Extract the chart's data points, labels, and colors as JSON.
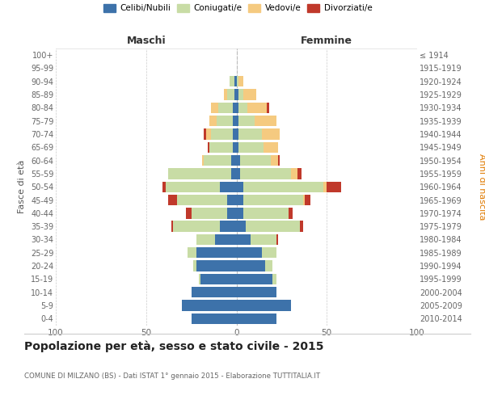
{
  "age_groups": [
    "0-4",
    "5-9",
    "10-14",
    "15-19",
    "20-24",
    "25-29",
    "30-34",
    "35-39",
    "40-44",
    "45-49",
    "50-54",
    "55-59",
    "60-64",
    "65-69",
    "70-74",
    "75-79",
    "80-84",
    "85-89",
    "90-94",
    "95-99",
    "100+"
  ],
  "birth_years": [
    "2010-2014",
    "2005-2009",
    "2000-2004",
    "1995-1999",
    "1990-1994",
    "1985-1989",
    "1980-1984",
    "1975-1979",
    "1970-1974",
    "1965-1969",
    "1960-1964",
    "1955-1959",
    "1950-1954",
    "1945-1949",
    "1940-1944",
    "1935-1939",
    "1930-1934",
    "1925-1929",
    "1920-1924",
    "1915-1919",
    "≤ 1914"
  ],
  "males": {
    "celibi": [
      25,
      30,
      25,
      20,
      22,
      22,
      12,
      9,
      5,
      5,
      9,
      3,
      3,
      2,
      2,
      2,
      2,
      1,
      1,
      0,
      0
    ],
    "coniugati": [
      0,
      0,
      0,
      1,
      2,
      5,
      10,
      26,
      20,
      28,
      30,
      35,
      15,
      13,
      12,
      9,
      8,
      4,
      3,
      0,
      0
    ],
    "vedovi": [
      0,
      0,
      0,
      0,
      0,
      0,
      0,
      0,
      0,
      0,
      0,
      0,
      1,
      0,
      3,
      4,
      4,
      2,
      0,
      0,
      0
    ],
    "divorziati": [
      0,
      0,
      0,
      0,
      0,
      0,
      0,
      1,
      3,
      5,
      2,
      0,
      0,
      1,
      1,
      0,
      0,
      0,
      0,
      0,
      0
    ]
  },
  "females": {
    "nubili": [
      22,
      30,
      22,
      20,
      16,
      14,
      8,
      5,
      4,
      4,
      4,
      2,
      2,
      1,
      1,
      1,
      1,
      1,
      0,
      0,
      0
    ],
    "coniugate": [
      0,
      0,
      0,
      2,
      4,
      8,
      14,
      30,
      25,
      33,
      44,
      28,
      17,
      14,
      13,
      9,
      5,
      3,
      1,
      0,
      0
    ],
    "vedove": [
      0,
      0,
      0,
      0,
      0,
      0,
      0,
      0,
      0,
      1,
      2,
      4,
      4,
      8,
      10,
      12,
      11,
      7,
      3,
      0,
      0
    ],
    "divorziate": [
      0,
      0,
      0,
      0,
      0,
      0,
      1,
      2,
      2,
      3,
      8,
      2,
      1,
      0,
      0,
      0,
      1,
      0,
      0,
      0,
      0
    ]
  },
  "colors": {
    "celibi_nubili": "#3d72aa",
    "coniugati": "#c8dca5",
    "vedovi": "#f5ca80",
    "divorziati": "#c0392b"
  },
  "title": "Popolazione per età, sesso e stato civile - 2015",
  "subtitle": "COMUNE DI MILZANO (BS) - Dati ISTAT 1° gennaio 2015 - Elaborazione TUTTITALIA.IT",
  "label_maschi": "Maschi",
  "label_femmine": "Femmine",
  "ylabel_left": "Fasce di età",
  "ylabel_right": "Anni di nascita",
  "legend_labels": [
    "Celibi/Nubili",
    "Coniugati/e",
    "Vedovi/e",
    "Divorziati/e"
  ],
  "xlim": 100,
  "background_color": "#ffffff",
  "grid_color": "#cccccc"
}
